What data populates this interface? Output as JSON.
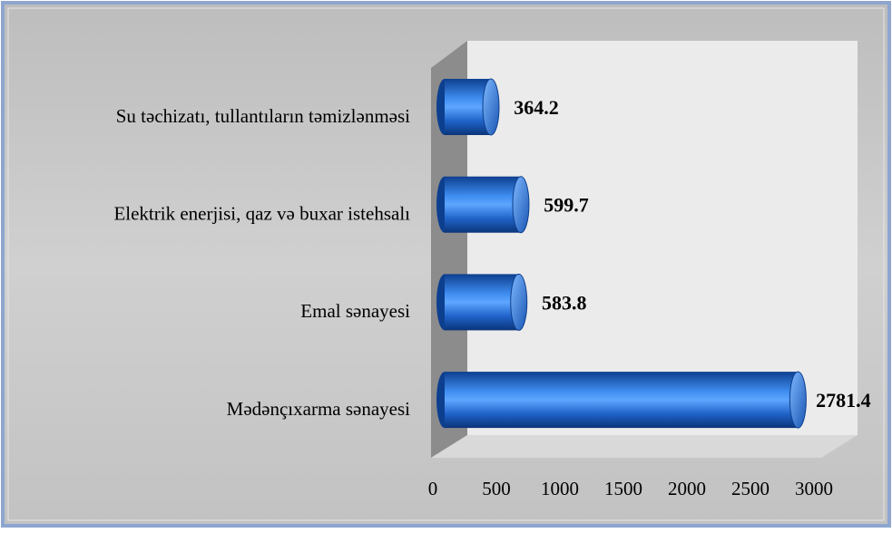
{
  "chart_data": {
    "type": "bar",
    "orientation": "horizontal",
    "categories": [
      "Su təchizatı, tullantıların  təmizlənməsi",
      "Elektrik enerjisi, qaz və buxar istehsalı",
      "Emal sənayesi",
      "Mədənçıxarma  sənayesi"
    ],
    "values": [
      364.2,
      599.7,
      583.8,
      2781.4
    ],
    "color": "#1f63c9",
    "xlim": [
      0,
      3000
    ],
    "xticks": [
      0,
      500,
      1000,
      1500,
      2000,
      2500,
      3000
    ]
  }
}
